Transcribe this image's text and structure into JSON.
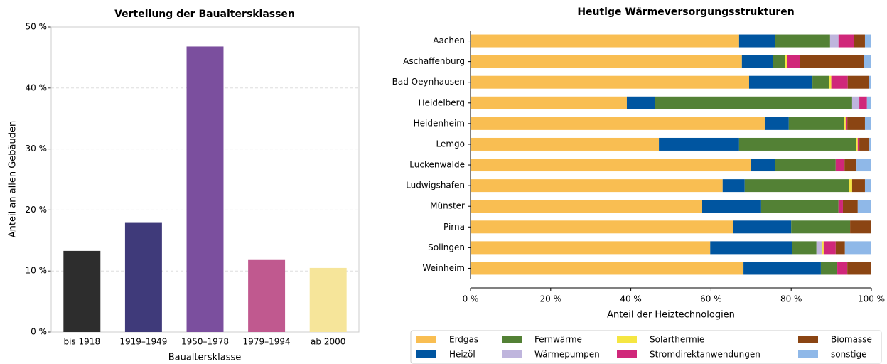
{
  "chart_data": [
    {
      "type": "bar",
      "title": "Verteilung der Baualtersklassen",
      "x_label": "Baualtersklasse",
      "y_label": "Anteil an allen Gebäuden",
      "categories": [
        "bis 1918",
        "1919–1949",
        "1950–1978",
        "1979–1994",
        "ab 2000"
      ],
      "values": [
        13.3,
        18.0,
        46.8,
        11.8,
        10.5
      ],
      "colors": [
        "#2d2d2d",
        "#3f3a7a",
        "#7b4f9e",
        "#c0598f",
        "#f6e59a"
      ],
      "ylim": [
        0,
        50
      ],
      "yticks": [
        {
          "value": 0,
          "label": "0 %"
        },
        {
          "value": 10,
          "label": "10 %"
        },
        {
          "value": 20,
          "label": "20 %"
        },
        {
          "value": 30,
          "label": "30 %"
        },
        {
          "value": 40,
          "label": "40 %"
        },
        {
          "value": 50,
          "label": "50 %"
        }
      ],
      "grid": true
    },
    {
      "type": "stacked_barh",
      "title": "Heutige Wärmeversorgungsstrukturen",
      "x_label": "Anteil der Heiztechnologien",
      "categories": [
        "Aachen",
        "Aschaffenburg",
        "Bad Oeynhausen",
        "Heidelberg",
        "Heidenheim",
        "Lemgo",
        "Luckenwalde",
        "Ludwigshafen",
        "Münster",
        "Pirna",
        "Solingen",
        "Weinheim"
      ],
      "series": [
        {
          "name": "Erdgas",
          "color": "#f9be52",
          "values": [
            67.0,
            67.7,
            69.5,
            39.0,
            73.4,
            47.0,
            69.9,
            62.9,
            57.8,
            65.6,
            59.8,
            68.1
          ]
        },
        {
          "name": "Heizöl",
          "color": "#0055a0",
          "values": [
            8.9,
            7.7,
            15.8,
            7.1,
            6.0,
            20.0,
            6.0,
            5.5,
            14.7,
            14.4,
            20.5,
            19.3
          ]
        },
        {
          "name": "Fernwärme",
          "color": "#538135",
          "values": [
            13.8,
            3.1,
            4.2,
            49.1,
            13.7,
            29.1,
            15.2,
            26.1,
            19.3,
            14.7,
            6.0,
            4.1
          ]
        },
        {
          "name": "Wärmepumpen",
          "color": "#bfb5dd",
          "values": [
            2.1,
            0,
            0,
            1.8,
            0,
            0,
            0,
            0,
            0,
            0,
            1.4,
            0
          ]
        },
        {
          "name": "Solarthermie",
          "color": "#f5e642",
          "values": [
            0,
            0.5,
            0.5,
            0,
            0.5,
            0.5,
            0,
            0.7,
            0,
            0,
            0.4,
            0
          ]
        },
        {
          "name": "Stromdirektanwendungen",
          "color": "#d0277a",
          "values": [
            3.8,
            3.1,
            4.1,
            1.9,
            0.4,
            0.4,
            2.2,
            0,
            1.1,
            0,
            3.0,
            2.5
          ]
        },
        {
          "name": "Biomasse",
          "color": "#8b4513",
          "values": [
            2.8,
            16.1,
            5.2,
            0,
            4.4,
            2.5,
            3.0,
            3.2,
            3.7,
            5.3,
            2.3,
            6.0
          ]
        },
        {
          "name": "sonstige",
          "color": "#8fb8e8",
          "values": [
            1.6,
            1.8,
            0.7,
            1.1,
            1.6,
            0.5,
            3.7,
            1.6,
            3.4,
            0,
            6.6,
            0
          ]
        }
      ],
      "xlim": [
        0,
        100
      ],
      "xticks": [
        {
          "value": 0,
          "label": "0 %"
        },
        {
          "value": 20,
          "label": "20 %"
        },
        {
          "value": 40,
          "label": "40 %"
        },
        {
          "value": 60,
          "label": "60 %"
        },
        {
          "value": 80,
          "label": "80 %"
        },
        {
          "value": 100,
          "label": "100 %"
        }
      ],
      "legend": "lower center"
    }
  ]
}
